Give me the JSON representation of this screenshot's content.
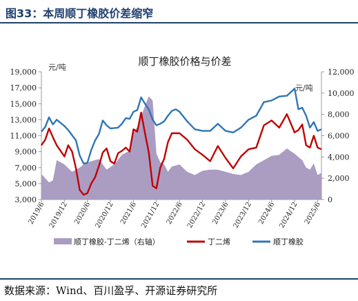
{
  "figure": {
    "title": "图33：本周顺丁橡胶价差缩窄",
    "source": "数据来源：Wind、百川盈孚、开源证券研究所"
  },
  "chart_data": {
    "type": "line",
    "title": "顺丁橡胶价格与价差",
    "left_unit": "元/吨",
    "right_unit": "元/吨",
    "y_left": {
      "min": 3000,
      "max": 19000,
      "ticks": [
        "3,000",
        "5,000",
        "7,000",
        "9,000",
        "11,000",
        "13,000",
        "15,000",
        "17,000",
        "19,000"
      ]
    },
    "y_right": {
      "min": 0,
      "max": 12000,
      "ticks": [
        "0",
        "2,000",
        "4,000",
        "6,000",
        "8,000",
        "10,000",
        "12,000"
      ]
    },
    "x_ticks": [
      "2019/6",
      "2019/12",
      "2020/6",
      "2020/12",
      "2021/6",
      "2021/12",
      "2022/6",
      "2022/12",
      "2023/6",
      "2023/12",
      "2024/6",
      "2024/12",
      "2025/6"
    ],
    "x_range": [
      "2019/6",
      "2025/7"
    ],
    "legend_position": "bottom",
    "colors": {
      "spread": "#ab9cc2",
      "butadiene": "#c00000",
      "rubber": "#2e75b6",
      "axis": "#999999"
    },
    "series": [
      {
        "name": "顺丁橡胶-丁二烯（右轴）",
        "axis": "right",
        "style": "area",
        "x": [
          "2019/6",
          "2019/8",
          "2019/9",
          "2019/10",
          "2019/12",
          "2020/2",
          "2020/4",
          "2020/5",
          "2020/7",
          "2020/9",
          "2020/11",
          "2021/1",
          "2021/3",
          "2021/5",
          "2021/6",
          "2021/7",
          "2021/8",
          "2021/9",
          "2021/10",
          "2021/11",
          "2021/12",
          "2022/1",
          "2022/2",
          "2022/3",
          "2022/4",
          "2022/5",
          "2022/6",
          "2022/8",
          "2022/10",
          "2022/12",
          "2023/2",
          "2023/4",
          "2023/6",
          "2023/8",
          "2023/10",
          "2023/12",
          "2024/2",
          "2024/4",
          "2024/6",
          "2024/8",
          "2024/10",
          "2024/12",
          "2025/2",
          "2025/3",
          "2025/4",
          "2025/5",
          "2025/6",
          "2025/7"
        ],
        "y": [
          2400,
          1600,
          1800,
          3700,
          3300,
          2600,
          3000,
          3300,
          3600,
          3800,
          2800,
          3300,
          4200,
          4600,
          6300,
          6800,
          7800,
          8800,
          9700,
          9300,
          4300,
          3500,
          3300,
          2600,
          3100,
          3200,
          3300,
          2600,
          2300,
          2700,
          2800,
          2800,
          2600,
          2400,
          2300,
          2600,
          3300,
          3700,
          4100,
          4200,
          4800,
          4300,
          3700,
          3000,
          2800,
          3400,
          2300,
          2500
        ]
      },
      {
        "name": "丁二烯",
        "axis": "left",
        "style": "line",
        "x": [
          "2019/6",
          "2019/7",
          "2019/8",
          "2019/9",
          "2019/10",
          "2019/12",
          "2020/1",
          "2020/2",
          "2020/3",
          "2020/4",
          "2020/5",
          "2020/6",
          "2020/7",
          "2020/8",
          "2020/9",
          "2020/10",
          "2020/11",
          "2020/12",
          "2021/1",
          "2021/2",
          "2021/3",
          "2021/4",
          "2021/5",
          "2021/6",
          "2021/7",
          "2021/8",
          "2021/9",
          "2021/10",
          "2021/11",
          "2021/12",
          "2022/1",
          "2022/2",
          "2022/3",
          "2022/4",
          "2022/6",
          "2022/8",
          "2022/10",
          "2022/12",
          "2023/2",
          "2023/4",
          "2023/6",
          "2023/8",
          "2023/10",
          "2023/12",
          "2024/2",
          "2024/4",
          "2024/6",
          "2024/8",
          "2024/10",
          "2024/12",
          "2025/1",
          "2025/2",
          "2025/3",
          "2025/4",
          "2025/5",
          "2025/6",
          "2025/7"
        ],
        "y": [
          9800,
          10500,
          11900,
          10800,
          9800,
          8400,
          9800,
          9000,
          6900,
          4200,
          3600,
          3800,
          5000,
          5800,
          7200,
          8900,
          9400,
          7800,
          7500,
          8800,
          9100,
          9500,
          9000,
          11800,
          11500,
          13900,
          11300,
          8900,
          4700,
          4400,
          7000,
          8100,
          10200,
          11300,
          11300,
          10500,
          9300,
          8600,
          7800,
          9700,
          8200,
          6900,
          8400,
          9300,
          9500,
          12300,
          12900,
          12000,
          13700,
          11400,
          11700,
          12400,
          9800,
          9500,
          11000,
          9500,
          9300
        ]
      },
      {
        "name": "顺丁橡胶",
        "axis": "left",
        "style": "line",
        "x": [
          "2019/6",
          "2019/7",
          "2019/8",
          "2019/9",
          "2019/10",
          "2019/12",
          "2020/1",
          "2020/3",
          "2020/4",
          "2020/5",
          "2020/6",
          "2020/7",
          "2020/8",
          "2020/9",
          "2020/10",
          "2020/11",
          "2020/12",
          "2021/2",
          "2021/3",
          "2021/4",
          "2021/5",
          "2021/6",
          "2021/7",
          "2021/8",
          "2021/9",
          "2021/10",
          "2021/11",
          "2021/12",
          "2022/1",
          "2022/2",
          "2022/3",
          "2022/4",
          "2022/5",
          "2022/6",
          "2022/8",
          "2022/10",
          "2022/12",
          "2023/2",
          "2023/4",
          "2023/6",
          "2023/8",
          "2023/10",
          "2023/12",
          "2024/2",
          "2024/4",
          "2024/6",
          "2024/8",
          "2024/10",
          "2024/12",
          "2025/1",
          "2025/2",
          "2025/3",
          "2025/4",
          "2025/5",
          "2025/6",
          "2025/7"
        ],
        "y": [
          11500,
          12100,
          13300,
          12400,
          13000,
          12200,
          11700,
          10400,
          8500,
          7500,
          7600,
          9200,
          10400,
          11200,
          12900,
          12300,
          11900,
          12000,
          12500,
          13200,
          13100,
          14000,
          14200,
          15800,
          15000,
          14300,
          13000,
          12300,
          12500,
          12800,
          13500,
          14100,
          14300,
          14000,
          12800,
          11800,
          11600,
          11600,
          12500,
          11600,
          11400,
          12000,
          13000,
          13500,
          15200,
          15400,
          15900,
          16000,
          16900,
          14300,
          14500,
          13500,
          12000,
          12700,
          11600,
          11800
        ]
      }
    ]
  }
}
